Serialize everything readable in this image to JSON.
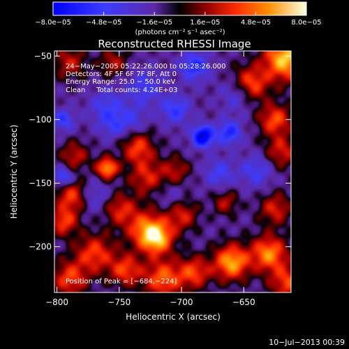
{
  "chart_data": {
    "type": "heatmap",
    "title": "Reconstructed RHESSI Image",
    "xlabel": "Heliocentric X (arcsec)",
    "ylabel": "Heliocentric Y (arcsec)",
    "xlim": [
      -802,
      -612
    ],
    "ylim": [
      -236,
      -46
    ],
    "xticks": [
      -800,
      -750,
      -700,
      -650
    ],
    "yticks": [
      -50,
      -100,
      -150,
      -200
    ],
    "xtick_labels": [
      "−800",
      "−750",
      "−700",
      "−650"
    ],
    "ytick_labels": [
      "−50",
      "−100",
      "−150",
      "−200"
    ],
    "colorbar": {
      "range": [
        -8e-05,
        8e-05
      ],
      "ticks": [
        -8e-05,
        -4.8e-05,
        -1.6e-05,
        1.6e-05,
        4.8e-05,
        8e-05
      ],
      "tick_labels": [
        "−8.0e−05",
        "−4.8e−05",
        "−1.6e−05",
        "1.6e−05",
        "4.8e−05",
        "8.0e−05"
      ],
      "label": "(photons cm⁻² s⁻¹ asec⁻²)"
    },
    "annotations": [
      "24−May−2005 05:22:26.000 to 05:28:26.000",
      "Detectors: 4F 5F 6F 7F 8F, Att 0",
      "Energy Range: 25.0 − 50.0 keV",
      "Clean     Total counts: 4.24E+03"
    ],
    "peak_label": "Position of Peak = [−684,−224]",
    "peak_position": [
      -684,
      -224
    ],
    "marker_position": [
      -684,
      -113
    ],
    "blobs": [
      {
        "x": -617,
        "y": -52,
        "value": 8e-05,
        "r": 12
      },
      {
        "x": -645,
        "y": -72,
        "value": 5.6e-05,
        "r": 10
      },
      {
        "x": -625,
        "y": -100,
        "value": 5.2e-05,
        "r": 9
      },
      {
        "x": -620,
        "y": -125,
        "value": 4e-05,
        "r": 9
      },
      {
        "x": -790,
        "y": -55,
        "value": 3.6e-05,
        "r": 9
      },
      {
        "x": -755,
        "y": -55,
        "value": 3.2e-05,
        "r": 8
      },
      {
        "x": -786,
        "y": -128,
        "value": 3.6e-05,
        "r": 8
      },
      {
        "x": -788,
        "y": -160,
        "value": 4.8e-05,
        "r": 9
      },
      {
        "x": -795,
        "y": -180,
        "value": 4.8e-05,
        "r": 8
      },
      {
        "x": -760,
        "y": -138,
        "value": 7.2e-05,
        "r": 6
      },
      {
        "x": -735,
        "y": -122,
        "value": 4.8e-05,
        "r": 9
      },
      {
        "x": -728,
        "y": -145,
        "value": 4e-05,
        "r": 10
      },
      {
        "x": -705,
        "y": -140,
        "value": 3.2e-05,
        "r": 8
      },
      {
        "x": -750,
        "y": -170,
        "value": 4e-05,
        "r": 9
      },
      {
        "x": -730,
        "y": -185,
        "value": 4.8e-05,
        "r": 11
      },
      {
        "x": -720,
        "y": -193,
        "value": 7.2e-05,
        "r": 9
      },
      {
        "x": -700,
        "y": -175,
        "value": 4e-05,
        "r": 9
      },
      {
        "x": -770,
        "y": -205,
        "value": 4.8e-05,
        "r": 11
      },
      {
        "x": -790,
        "y": -225,
        "value": 4.8e-05,
        "r": 10
      },
      {
        "x": -745,
        "y": -218,
        "value": 4.8e-05,
        "r": 9
      },
      {
        "x": -715,
        "y": -225,
        "value": 5.6e-05,
        "r": 11
      },
      {
        "x": -690,
        "y": -220,
        "value": 4.8e-05,
        "r": 9
      },
      {
        "x": -660,
        "y": -212,
        "value": 7.2e-05,
        "r": 10
      },
      {
        "x": -630,
        "y": -205,
        "value": 6.4e-05,
        "r": 10
      },
      {
        "x": -625,
        "y": -170,
        "value": 4e-05,
        "r": 9
      },
      {
        "x": -615,
        "y": -228,
        "value": 4.8e-05,
        "r": 10
      },
      {
        "x": -665,
        "y": -165,
        "value": 3.2e-05,
        "r": 7
      },
      {
        "x": -690,
        "y": -58,
        "value": -4.8e-05,
        "r": 8
      },
      {
        "x": -730,
        "y": -75,
        "value": -3.2e-05,
        "r": 10
      },
      {
        "x": -760,
        "y": -90,
        "value": -3.2e-05,
        "r": 10
      },
      {
        "x": -705,
        "y": -92,
        "value": -4e-05,
        "r": 8
      },
      {
        "x": -683,
        "y": -113,
        "value": -8e-05,
        "r": 6
      },
      {
        "x": -662,
        "y": -110,
        "value": -4.8e-05,
        "r": 7
      },
      {
        "x": -655,
        "y": -80,
        "value": -3.2e-05,
        "r": 9
      },
      {
        "x": -640,
        "y": -140,
        "value": -3.2e-05,
        "r": 9
      },
      {
        "x": -670,
        "y": -142,
        "value": -3.2e-05,
        "r": 8
      },
      {
        "x": -795,
        "y": -100,
        "value": -4e-05,
        "r": 6
      },
      {
        "x": -795,
        "y": -145,
        "value": -4.8e-05,
        "r": 5
      },
      {
        "x": -770,
        "y": -160,
        "value": -2.4e-05,
        "r": 9
      },
      {
        "x": -755,
        "y": -105,
        "value": -2.4e-05,
        "r": 7
      },
      {
        "x": -708,
        "y": -160,
        "value": -1.6e-05,
        "r": 8
      },
      {
        "x": -740,
        "y": -100,
        "value": -2.4e-05,
        "r": 8
      }
    ]
  },
  "footer": {
    "timestamp": "10−Jul−2013 00:39"
  }
}
